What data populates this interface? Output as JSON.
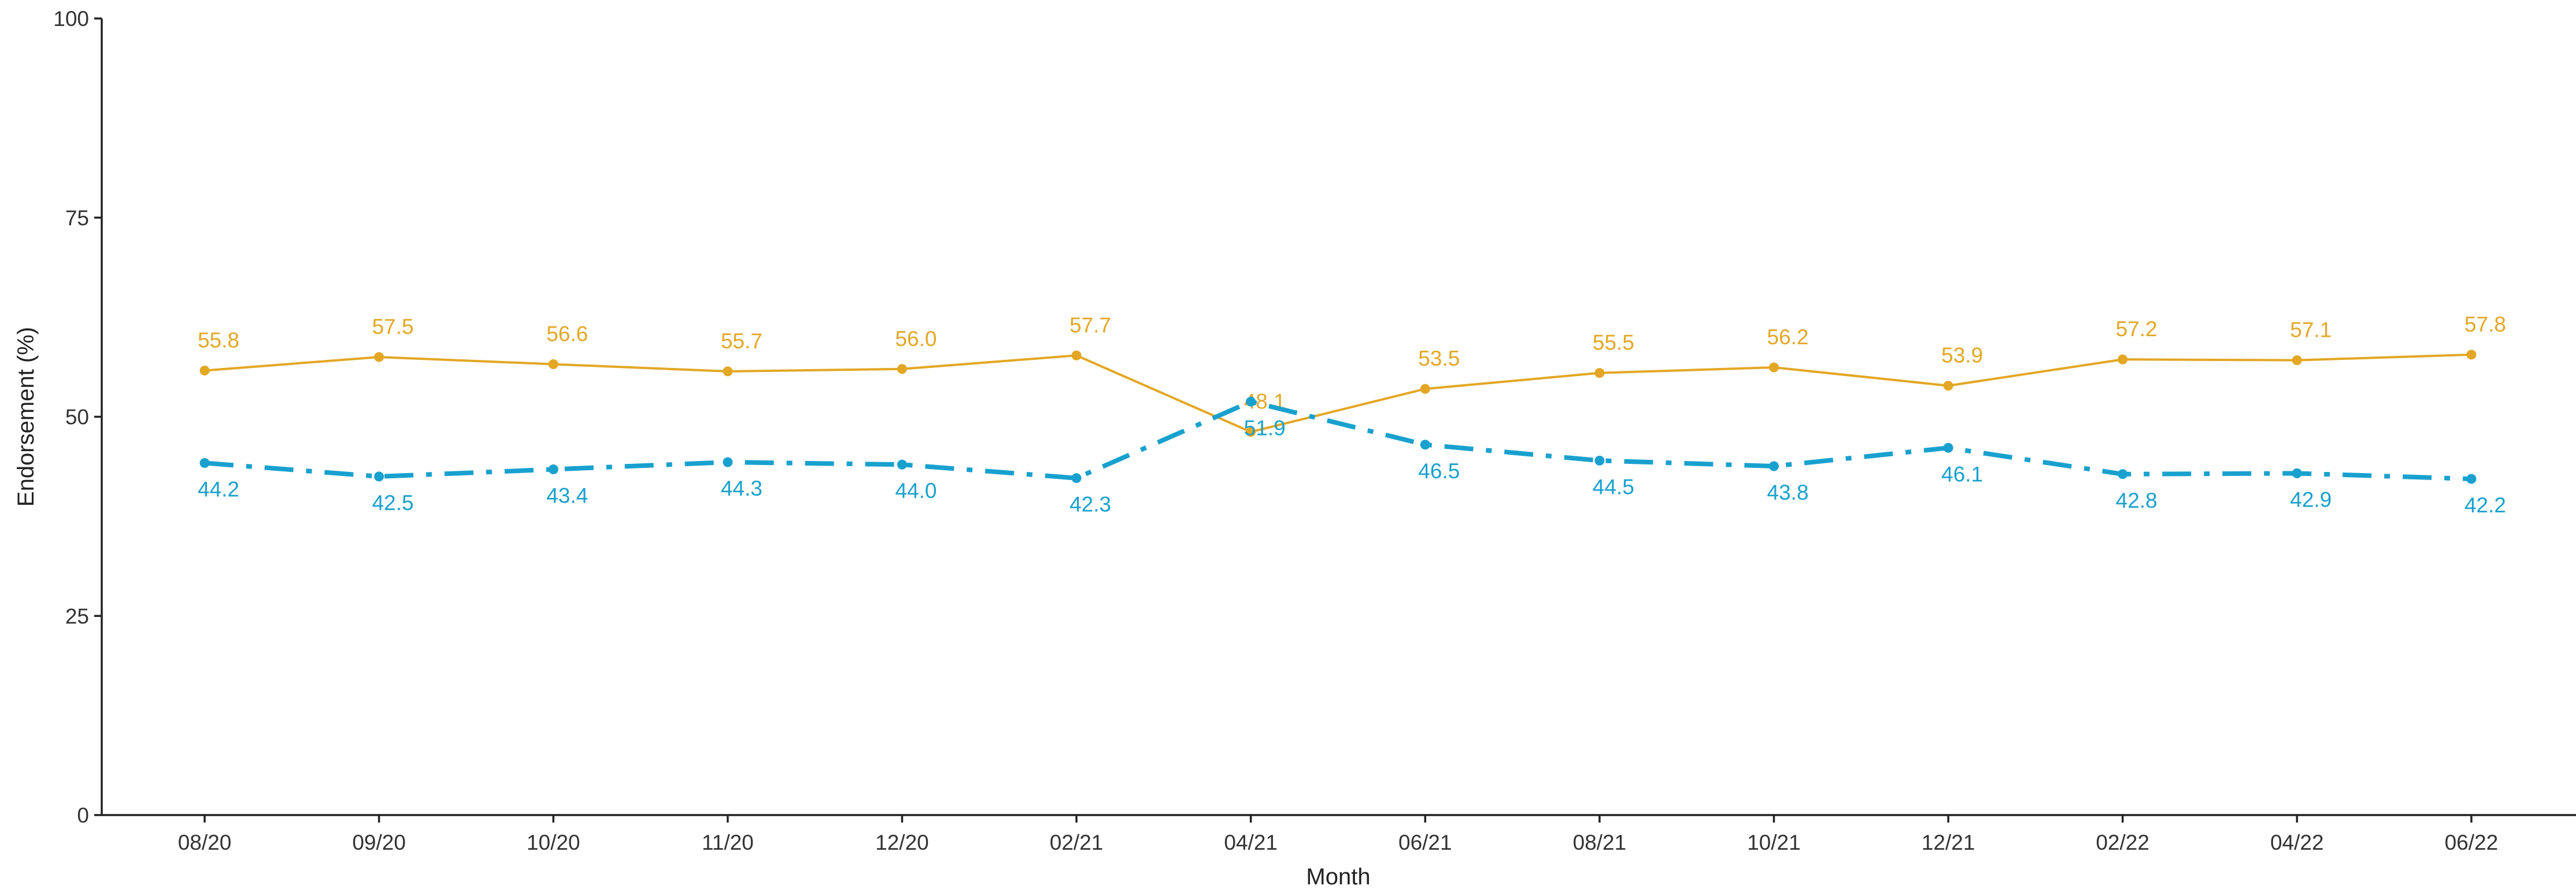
{
  "chart_data": {
    "type": "line",
    "title": "",
    "xlabel": "Month",
    "ylabel": "Endorsement (%)",
    "ylim": [
      0,
      100
    ],
    "yticks": [
      0,
      25,
      50,
      75,
      100
    ],
    "categories": [
      "08/20",
      "09/20",
      "10/20",
      "11/20",
      "12/20",
      "02/21",
      "04/21",
      "06/21",
      "08/21",
      "10/21",
      "12/21",
      "02/22",
      "04/22",
      "06/22"
    ],
    "grid": false,
    "legend": "none",
    "series": [
      {
        "color": "#E3A724",
        "line_style": "solid",
        "label_position": "above",
        "values": [
          55.8,
          57.5,
          56.6,
          55.7,
          56.0,
          57.7,
          48.1,
          53.5,
          55.5,
          56.2,
          53.9,
          57.2,
          57.1,
          57.8
        ],
        "labels": [
          "55.8",
          "57.5",
          "56.6",
          "55.7",
          "56.0",
          "57.7",
          "48.1",
          "53.5",
          "55.5",
          "56.2",
          "53.9",
          "57.2",
          "57.1",
          "57.8"
        ]
      },
      {
        "color": "#18A1CE",
        "line_style": "dash-dot",
        "label_position": "below",
        "values": [
          44.2,
          42.5,
          43.4,
          44.3,
          44.0,
          42.3,
          51.9,
          46.5,
          44.5,
          43.8,
          46.1,
          42.8,
          42.9,
          42.2
        ],
        "labels": [
          "44.2",
          "42.5",
          "43.4",
          "44.3",
          "44.0",
          "42.3",
          "51.9",
          "46.5",
          "44.5",
          "43.8",
          "46.1",
          "42.8",
          "42.9",
          "42.2"
        ]
      }
    ]
  }
}
